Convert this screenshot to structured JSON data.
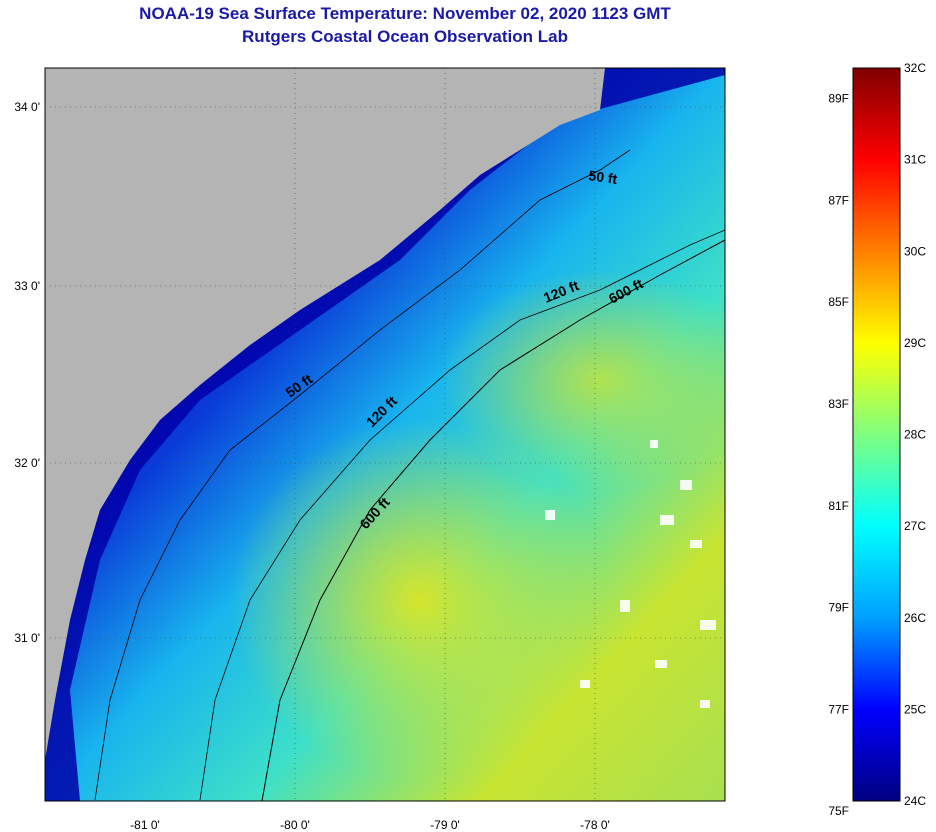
{
  "header": {
    "title": "NOAA-19 Sea Surface Temperature:  November 02, 2020 1123 GMT",
    "subtitle": "Rutgers Coastal Ocean Observation Lab"
  },
  "map": {
    "region": "South Atlantic Bight (SC / GA coast)",
    "lat_ticks": [
      "34 0'",
      "33 0'",
      "32 0'",
      "31 0'"
    ],
    "lon_ticks": [
      "-81 0'",
      "-80 0'",
      "-79 0'",
      "-78 0'"
    ],
    "lat_range": [
      30.2,
      34.2
    ],
    "lon_range": [
      -81.5,
      -77.3
    ],
    "isobaths": [
      {
        "label": "50 ft",
        "depth_ft": 50
      },
      {
        "label": "50 ft",
        "depth_ft": 50
      },
      {
        "label": "120 ft",
        "depth_ft": 120
      },
      {
        "label": "120 ft",
        "depth_ft": 120
      },
      {
        "label": "600 ft",
        "depth_ft": 600
      },
      {
        "label": "600 ft",
        "depth_ft": 600
      }
    ],
    "colors": {
      "land": "#b4b4b4",
      "cold": "#0000a8",
      "warm": "#d8e61e"
    }
  },
  "colorbar": {
    "fahrenheit_labels": [
      "89F",
      "87F",
      "85F",
      "83F",
      "81F",
      "79F",
      "77F",
      "75F"
    ],
    "celsius_labels": [
      "32C",
      "31C",
      "30C",
      "29C",
      "28C",
      "27C",
      "26C",
      "25C",
      "24C"
    ],
    "range_c": [
      24,
      32
    ],
    "stops": [
      "#000080",
      "#0000ff",
      "#00a0ff",
      "#00ffff",
      "#80ff80",
      "#ffff00",
      "#ff8000",
      "#ff0000",
      "#800000"
    ]
  }
}
